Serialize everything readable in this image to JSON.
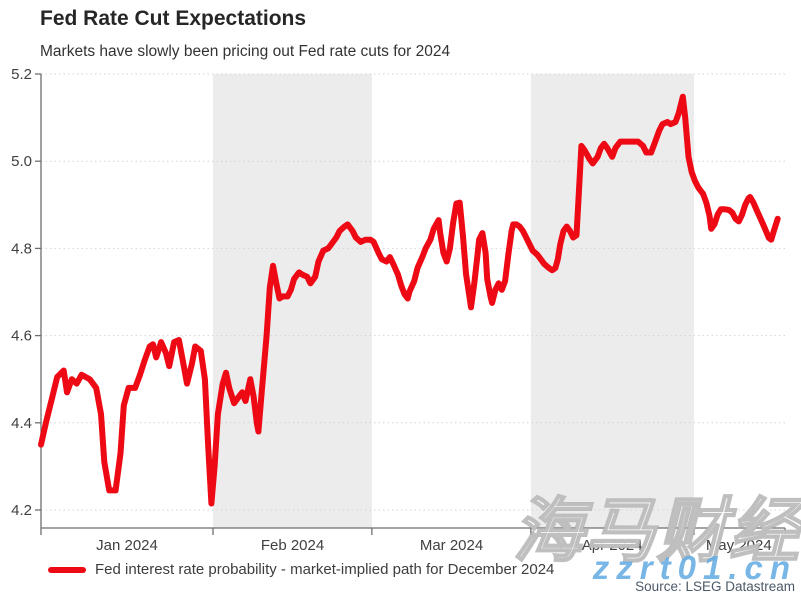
{
  "header": {
    "title": "Fed Rate Cut Expectations",
    "subtitle": "Markets have slowly been pricing out Fed rate cuts for 2024"
  },
  "legend": {
    "label": "Fed interest rate probability - market-implied path for December 2024"
  },
  "source": {
    "text": "Source: LSEG Datastream"
  },
  "watermarks": {
    "cjk": "海马财经",
    "latin": "zzrt01.cn"
  },
  "colors": {
    "line_red": "#ee0a14",
    "band_gray": "#ececec",
    "grid_gray": "#d4d4d4",
    "axis_gray": "#6e6e6e",
    "tick_label": "#404040",
    "watermark_blue": "#65ace2"
  },
  "chart_data": {
    "type": "line",
    "title": "Fed Rate Cut Expectations",
    "subtitle": "Markets have slowly been pricing out Fed rate cuts for 2024",
    "xlabel": "",
    "ylabel": "",
    "x_unit": "months since 2024-01-01",
    "x_range": [
      0,
      4.585
    ],
    "y_range": [
      4.2,
      5.2
    ],
    "y_ticks": [
      4.2,
      4.4,
      4.6,
      4.8,
      5.0,
      5.2
    ],
    "y_tick_labels": [
      "4.2",
      "4.4",
      "4.6",
      "4.8",
      "5.0",
      "5.2"
    ],
    "grid": "dotted-horizontal",
    "legend_position": "bottom-left",
    "x_tick_positions": [
      0,
      1.06,
      2.039,
      3.019,
      4.024,
      4.585
    ],
    "x_month_labels": [
      {
        "label": "Jan 2024",
        "t_center": 0.53
      },
      {
        "label": "Feb 2024",
        "t_center": 1.55
      },
      {
        "label": "Mar 2024",
        "t_center": 2.53
      },
      {
        "label": "Apr 2024",
        "t_center": 3.52
      },
      {
        "label": "May 2024",
        "t_center": 4.3
      }
    ],
    "shaded_bands": [
      [
        1.06,
        2.039
      ],
      [
        3.019,
        4.024
      ]
    ],
    "series": [
      {
        "name": "Fed interest rate probability - market-implied path for December 2024",
        "color": "#ee0a14",
        "points": [
          [
            0.0,
            4.35
          ],
          [
            0.03,
            4.4
          ],
          [
            0.07,
            4.46
          ],
          [
            0.1,
            4.505
          ],
          [
            0.14,
            4.52
          ],
          [
            0.16,
            4.47
          ],
          [
            0.19,
            4.5
          ],
          [
            0.22,
            4.49
          ],
          [
            0.25,
            4.51
          ],
          [
            0.3,
            4.5
          ],
          [
            0.34,
            4.48
          ],
          [
            0.37,
            4.42
          ],
          [
            0.39,
            4.31
          ],
          [
            0.42,
            4.245
          ],
          [
            0.46,
            4.245
          ],
          [
            0.49,
            4.33
          ],
          [
            0.51,
            4.44
          ],
          [
            0.54,
            4.48
          ],
          [
            0.58,
            4.48
          ],
          [
            0.61,
            4.51
          ],
          [
            0.64,
            4.545
          ],
          [
            0.67,
            4.575
          ],
          [
            0.69,
            4.58
          ],
          [
            0.71,
            4.55
          ],
          [
            0.74,
            4.585
          ],
          [
            0.77,
            4.56
          ],
          [
            0.79,
            4.53
          ],
          [
            0.82,
            4.585
          ],
          [
            0.85,
            4.59
          ],
          [
            0.87,
            4.55
          ],
          [
            0.9,
            4.49
          ],
          [
            0.93,
            4.535
          ],
          [
            0.95,
            4.575
          ],
          [
            0.985,
            4.565
          ],
          [
            1.01,
            4.5
          ],
          [
            1.03,
            4.35
          ],
          [
            1.05,
            4.215
          ],
          [
            1.07,
            4.3
          ],
          [
            1.09,
            4.42
          ],
          [
            1.12,
            4.49
          ],
          [
            1.14,
            4.515
          ],
          [
            1.16,
            4.48
          ],
          [
            1.19,
            4.445
          ],
          [
            1.21,
            4.455
          ],
          [
            1.24,
            4.47
          ],
          [
            1.26,
            4.45
          ],
          [
            1.29,
            4.5
          ],
          [
            1.31,
            4.46
          ],
          [
            1.33,
            4.4
          ],
          [
            1.34,
            4.38
          ],
          [
            1.36,
            4.47
          ],
          [
            1.39,
            4.6
          ],
          [
            1.41,
            4.71
          ],
          [
            1.43,
            4.76
          ],
          [
            1.45,
            4.72
          ],
          [
            1.47,
            4.685
          ],
          [
            1.49,
            4.69
          ],
          [
            1.52,
            4.69
          ],
          [
            1.54,
            4.705
          ],
          [
            1.56,
            4.73
          ],
          [
            1.59,
            4.745
          ],
          [
            1.61,
            4.74
          ],
          [
            1.64,
            4.735
          ],
          [
            1.66,
            4.72
          ],
          [
            1.69,
            4.735
          ],
          [
            1.71,
            4.77
          ],
          [
            1.74,
            4.795
          ],
          [
            1.77,
            4.8
          ],
          [
            1.79,
            4.81
          ],
          [
            1.82,
            4.825
          ],
          [
            1.84,
            4.84
          ],
          [
            1.87,
            4.85
          ],
          [
            1.89,
            4.855
          ],
          [
            1.92,
            4.84
          ],
          [
            1.94,
            4.825
          ],
          [
            1.97,
            4.815
          ],
          [
            2.0,
            4.82
          ],
          [
            2.03,
            4.82
          ],
          [
            2.05,
            4.815
          ],
          [
            2.08,
            4.79
          ],
          [
            2.1,
            4.775
          ],
          [
            2.13,
            4.77
          ],
          [
            2.15,
            4.78
          ],
          [
            2.17,
            4.765
          ],
          [
            2.2,
            4.74
          ],
          [
            2.22,
            4.715
          ],
          [
            2.24,
            4.695
          ],
          [
            2.26,
            4.685
          ],
          [
            2.27,
            4.7
          ],
          [
            2.3,
            4.725
          ],
          [
            2.32,
            4.755
          ],
          [
            2.35,
            4.78
          ],
          [
            2.37,
            4.8
          ],
          [
            2.4,
            4.82
          ],
          [
            2.42,
            4.845
          ],
          [
            2.45,
            4.865
          ],
          [
            2.46,
            4.835
          ],
          [
            2.48,
            4.79
          ],
          [
            2.5,
            4.77
          ],
          [
            2.52,
            4.8
          ],
          [
            2.54,
            4.86
          ],
          [
            2.56,
            4.903
          ],
          [
            2.58,
            4.905
          ],
          [
            2.6,
            4.83
          ],
          [
            2.62,
            4.74
          ],
          [
            2.64,
            4.69
          ],
          [
            2.65,
            4.665
          ],
          [
            2.67,
            4.72
          ],
          [
            2.69,
            4.785
          ],
          [
            2.7,
            4.82
          ],
          [
            2.72,
            4.835
          ],
          [
            2.74,
            4.79
          ],
          [
            2.75,
            4.73
          ],
          [
            2.77,
            4.69
          ],
          [
            2.78,
            4.675
          ],
          [
            2.8,
            4.705
          ],
          [
            2.82,
            4.72
          ],
          [
            2.84,
            4.705
          ],
          [
            2.86,
            4.725
          ],
          [
            2.88,
            4.785
          ],
          [
            2.9,
            4.84
          ],
          [
            2.91,
            4.855
          ],
          [
            2.93,
            4.855
          ],
          [
            2.95,
            4.85
          ],
          [
            2.97,
            4.84
          ],
          [
            2.99,
            4.825
          ],
          [
            3.01,
            4.81
          ],
          [
            3.03,
            4.795
          ],
          [
            3.06,
            4.785
          ],
          [
            3.08,
            4.775
          ],
          [
            3.1,
            4.765
          ],
          [
            3.13,
            4.755
          ],
          [
            3.15,
            4.75
          ],
          [
            3.17,
            4.755
          ],
          [
            3.185,
            4.775
          ],
          [
            3.2,
            4.81
          ],
          [
            3.22,
            4.84
          ],
          [
            3.24,
            4.85
          ],
          [
            3.26,
            4.84
          ],
          [
            3.28,
            4.825
          ],
          [
            3.3,
            4.83
          ],
          [
            3.315,
            4.93
          ],
          [
            3.33,
            5.035
          ],
          [
            3.35,
            5.025
          ],
          [
            3.38,
            5.005
          ],
          [
            3.4,
            4.995
          ],
          [
            3.43,
            5.01
          ],
          [
            3.45,
            5.03
          ],
          [
            3.47,
            5.04
          ],
          [
            3.49,
            5.03
          ],
          [
            3.52,
            5.01
          ],
          [
            3.54,
            5.03
          ],
          [
            3.57,
            5.045
          ],
          [
            3.6,
            5.045
          ],
          [
            3.64,
            5.045
          ],
          [
            3.68,
            5.045
          ],
          [
            3.71,
            5.035
          ],
          [
            3.73,
            5.02
          ],
          [
            3.76,
            5.02
          ],
          [
            3.78,
            5.04
          ],
          [
            3.81,
            5.07
          ],
          [
            3.83,
            5.085
          ],
          [
            3.86,
            5.09
          ],
          [
            3.88,
            5.085
          ],
          [
            3.91,
            5.09
          ],
          [
            3.93,
            5.11
          ],
          [
            3.955,
            5.148
          ],
          [
            3.97,
            5.1
          ],
          [
            3.99,
            5.01
          ],
          [
            4.01,
            4.975
          ],
          [
            4.03,
            4.955
          ],
          [
            4.05,
            4.94
          ],
          [
            4.08,
            4.925
          ],
          [
            4.1,
            4.905
          ],
          [
            4.12,
            4.875
          ],
          [
            4.13,
            4.845
          ],
          [
            4.15,
            4.855
          ],
          [
            4.17,
            4.878
          ],
          [
            4.19,
            4.89
          ],
          [
            4.21,
            4.89
          ],
          [
            4.24,
            4.888
          ],
          [
            4.26,
            4.882
          ],
          [
            4.28,
            4.868
          ],
          [
            4.3,
            4.862
          ],
          [
            4.32,
            4.877
          ],
          [
            4.34,
            4.9
          ],
          [
            4.36,
            4.915
          ],
          [
            4.37,
            4.918
          ],
          [
            4.39,
            4.905
          ],
          [
            4.41,
            4.888
          ],
          [
            4.43,
            4.872
          ],
          [
            4.45,
            4.855
          ],
          [
            4.47,
            4.838
          ],
          [
            4.485,
            4.824
          ],
          [
            4.5,
            4.82
          ],
          [
            4.52,
            4.845
          ],
          [
            4.54,
            4.868
          ]
        ]
      }
    ]
  }
}
